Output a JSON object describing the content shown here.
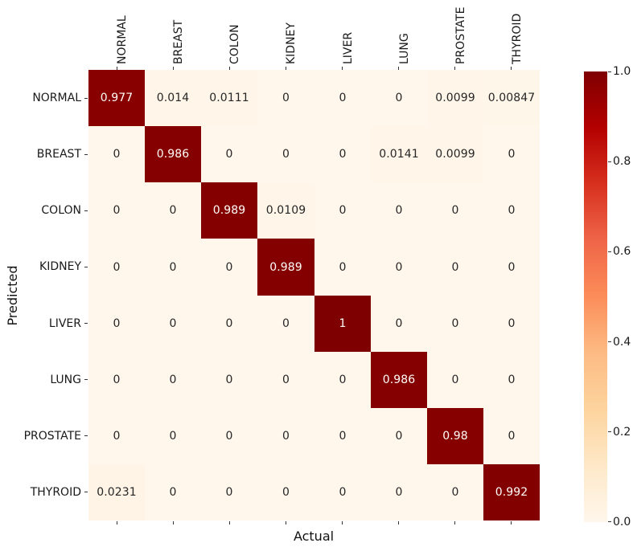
{
  "chart_data": {
    "type": "heatmap",
    "title": "",
    "xlabel": "Actual",
    "ylabel": "Predicted",
    "x_categories": [
      "NORMAL",
      "BREAST",
      "COLON",
      "KIDNEY",
      "LIVER",
      "LUNG",
      "PROSTATE",
      "THYROID"
    ],
    "y_categories": [
      "NORMAL",
      "BREAST",
      "COLON",
      "KIDNEY",
      "LIVER",
      "LUNG",
      "PROSTATE",
      "THYROID"
    ],
    "values": [
      [
        0.977,
        0.014,
        0.0111,
        0,
        0,
        0,
        0.0099,
        0.00847
      ],
      [
        0,
        0.986,
        0,
        0,
        0,
        0.0141,
        0.0099,
        0
      ],
      [
        0,
        0,
        0.989,
        0.0109,
        0,
        0,
        0,
        0
      ],
      [
        0,
        0,
        0,
        0.989,
        0,
        0,
        0,
        0
      ],
      [
        0,
        0,
        0,
        0,
        1,
        0,
        0,
        0
      ],
      [
        0,
        0,
        0,
        0,
        0,
        0.986,
        0,
        0
      ],
      [
        0,
        0,
        0,
        0,
        0,
        0,
        0.98,
        0
      ],
      [
        0.0231,
        0,
        0,
        0,
        0,
        0,
        0,
        0.992
      ]
    ],
    "cell_labels": [
      [
        "0.977",
        "0.014",
        "0.0111",
        "0",
        "0",
        "0",
        "0.0099",
        "0.00847"
      ],
      [
        "0",
        "0.986",
        "0",
        "0",
        "0",
        "0.0141",
        "0.0099",
        "0"
      ],
      [
        "0",
        "0",
        "0.989",
        "0.0109",
        "0",
        "0",
        "0",
        "0"
      ],
      [
        "0",
        "0",
        "0",
        "0.989",
        "0",
        "0",
        "0",
        "0"
      ],
      [
        "0",
        "0",
        "0",
        "0",
        "1",
        "0",
        "0",
        "0"
      ],
      [
        "0",
        "0",
        "0",
        "0",
        "0",
        "0.986",
        "0",
        "0"
      ],
      [
        "0",
        "0",
        "0",
        "0",
        "0",
        "0",
        "0.98",
        "0"
      ],
      [
        "0.0231",
        "0",
        "0",
        "0",
        "0",
        "0",
        "0",
        "0.992"
      ]
    ],
    "vmin": 0,
    "vmax": 1,
    "grid": false,
    "colormap": "OrRd",
    "colormap_stops": [
      "#fff7ec",
      "#fee8c8",
      "#fdd49e",
      "#fdbb84",
      "#fc8d59",
      "#ef6548",
      "#d7301f",
      "#b30000",
      "#7f0000"
    ],
    "cell_text_dark": "#262626",
    "cell_text_light": "#fffefb",
    "colorbar": {
      "position": "right",
      "tick_labels": [
        "1.0",
        "0.8",
        "0.6",
        "0.4",
        "0.2",
        "0.0"
      ],
      "tick_values": [
        1.0,
        0.8,
        0.6,
        0.4,
        0.2,
        0.0
      ]
    }
  }
}
